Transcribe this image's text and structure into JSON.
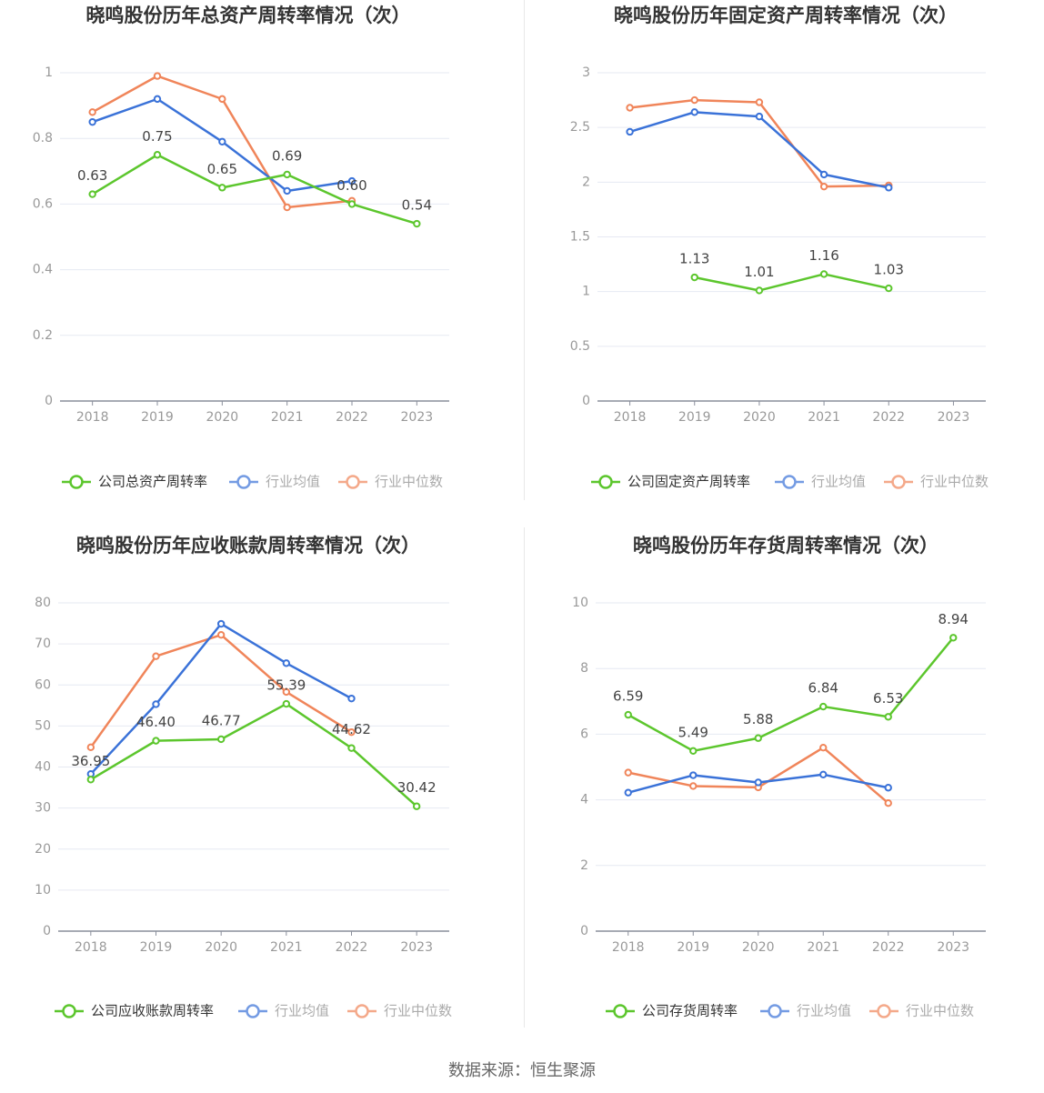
{
  "source_label": "数据来源：恒生聚源",
  "colors": {
    "company": "#5cc62d",
    "avg": "#3a72d8",
    "median": "#f0855a",
    "grid": "#e6e9f2",
    "axis": "#8a8f9c",
    "text": "#999999",
    "label": "#444444",
    "title": "#333333"
  },
  "chart_data": [
    {
      "type": "line",
      "title": "晓鸣股份历年总资产周转率情况（次）",
      "categories": [
        "2018",
        "2019",
        "2020",
        "2021",
        "2022",
        "2023"
      ],
      "ylim": [
        0,
        1
      ],
      "yticks": [
        0,
        0.2,
        0.4,
        0.6,
        0.8,
        1
      ],
      "ytick_labels": [
        "0",
        "0.2",
        "0.4",
        "0.6",
        "0.8",
        "1"
      ],
      "series": [
        {
          "name": "公司总资产周转率",
          "role": "company",
          "values": [
            0.63,
            0.75,
            0.65,
            0.69,
            0.6,
            0.54
          ],
          "labels": [
            "0.63",
            "0.75",
            "0.65",
            "0.69",
            "0.60",
            "0.54"
          ]
        },
        {
          "name": "行业均值",
          "role": "avg",
          "values": [
            0.85,
            0.92,
            0.79,
            0.64,
            0.67,
            null
          ]
        },
        {
          "name": "行业中位数",
          "role": "median",
          "values": [
            0.88,
            0.99,
            0.92,
            0.59,
            0.61,
            null
          ]
        }
      ]
    },
    {
      "type": "line",
      "title": "晓鸣股份历年固定资产周转率情况（次）",
      "categories": [
        "2018",
        "2019",
        "2020",
        "2021",
        "2022",
        "2023"
      ],
      "ylim": [
        0,
        3
      ],
      "yticks": [
        0,
        0.5,
        1,
        1.5,
        2,
        2.5,
        3
      ],
      "ytick_labels": [
        "0",
        "0.5",
        "1",
        "1.5",
        "2",
        "2.5",
        "3"
      ],
      "series": [
        {
          "name": "公司固定资产周转率",
          "role": "company",
          "values": [
            null,
            1.13,
            1.01,
            1.16,
            1.03,
            null
          ],
          "labels": [
            "",
            "1.13",
            "1.01",
            "1.16",
            "1.03",
            ""
          ]
        },
        {
          "name": "行业均值",
          "role": "avg",
          "values": [
            2.46,
            2.64,
            2.6,
            2.07,
            1.95,
            null
          ]
        },
        {
          "name": "行业中位数",
          "role": "median",
          "values": [
            2.68,
            2.75,
            2.73,
            1.96,
            1.97,
            null
          ]
        }
      ]
    },
    {
      "type": "line",
      "title": "晓鸣股份历年应收账款周转率情况（次）",
      "categories": [
        "2018",
        "2019",
        "2020",
        "2021",
        "2022",
        "2023"
      ],
      "ylim": [
        0,
        80
      ],
      "yticks": [
        0,
        10,
        20,
        30,
        40,
        50,
        60,
        70,
        80
      ],
      "ytick_labels": [
        "0",
        "10",
        "20",
        "30",
        "40",
        "50",
        "60",
        "70",
        "80"
      ],
      "series": [
        {
          "name": "公司应收账款周转率",
          "role": "company",
          "values": [
            36.95,
            46.4,
            46.77,
            55.39,
            44.62,
            30.42
          ],
          "labels": [
            "36.95",
            "46.40",
            "46.77",
            "55.39",
            "44.62",
            "30.42"
          ]
        },
        {
          "name": "行业均值",
          "role": "avg",
          "values": [
            38.3,
            55.3,
            74.9,
            65.3,
            56.7,
            null
          ]
        },
        {
          "name": "行业中位数",
          "role": "median",
          "values": [
            44.8,
            67.0,
            72.2,
            58.3,
            48.5,
            null
          ]
        }
      ]
    },
    {
      "type": "line",
      "title": "晓鸣股份历年存货周转率情况（次）",
      "categories": [
        "2018",
        "2019",
        "2020",
        "2021",
        "2022",
        "2023"
      ],
      "ylim": [
        0,
        10
      ],
      "yticks": [
        0,
        2,
        4,
        6,
        8,
        10
      ],
      "ytick_labels": [
        "0",
        "2",
        "4",
        "6",
        "8",
        "10"
      ],
      "series": [
        {
          "name": "公司存货周转率",
          "role": "company",
          "values": [
            6.59,
            5.49,
            5.88,
            6.84,
            6.53,
            8.94
          ],
          "labels": [
            "6.59",
            "5.49",
            "5.88",
            "6.84",
            "6.53",
            "8.94"
          ]
        },
        {
          "name": "行业均值",
          "role": "avg",
          "values": [
            4.22,
            4.75,
            4.53,
            4.77,
            4.37,
            null
          ]
        },
        {
          "name": "行业中位数",
          "role": "median",
          "values": [
            4.83,
            4.42,
            4.38,
            5.59,
            3.9,
            null
          ]
        }
      ]
    }
  ]
}
